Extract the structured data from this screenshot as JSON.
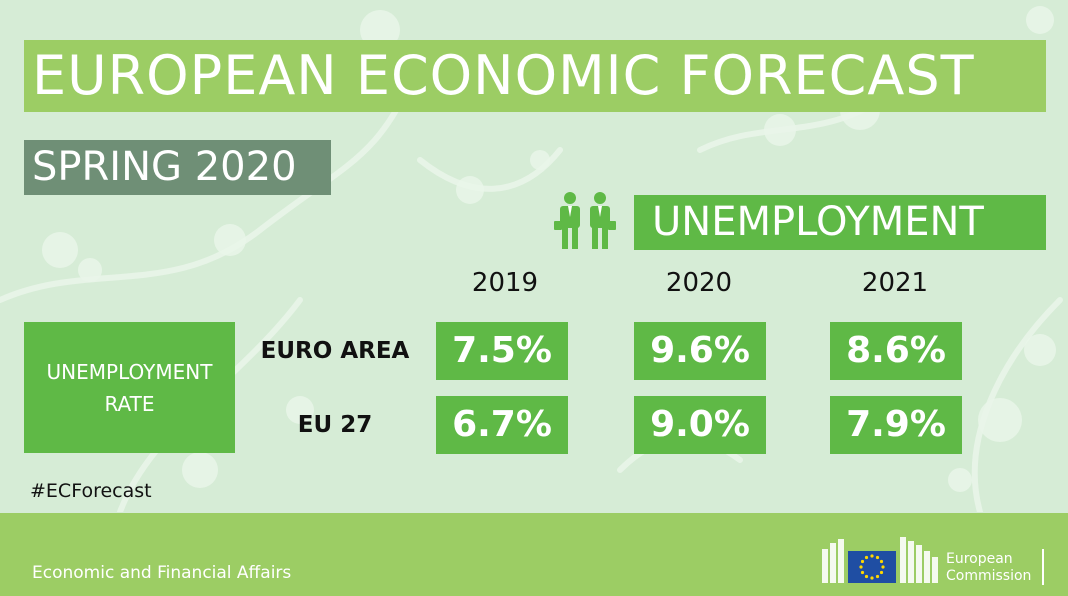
{
  "header": {
    "title": "EUROPEAN ECONOMIC FORECAST",
    "season": "SPRING 2020"
  },
  "section": {
    "icon": "businesspeople-icon",
    "label": "UNEMPLOYMENT"
  },
  "table": {
    "row_header": {
      "line1": "UNEMPLOYMENT",
      "line2": "RATE"
    },
    "years": [
      "2019",
      "2020",
      "2021"
    ],
    "rows": [
      {
        "label": "EURO AREA",
        "values": [
          "7.5%",
          "9.6%",
          "8.6%"
        ]
      },
      {
        "label": "EU 27",
        "values": [
          "6.7%",
          "9.0%",
          "7.9%"
        ]
      }
    ]
  },
  "hashtag": "#ECForecast",
  "footer": {
    "department": "Economic and Financial Affairs",
    "logo": {
      "icon": "eu-flag-icon",
      "line1": "European",
      "line2": "Commission"
    }
  },
  "colors": {
    "background": "#d6ecd6",
    "title_bar": "#9ccd64",
    "season_bar": "#6f8f76",
    "accent_green": "#5fb946",
    "footer": "#9ccd64",
    "eu_blue": "#1f4ea3",
    "eu_star": "#ffd700"
  }
}
